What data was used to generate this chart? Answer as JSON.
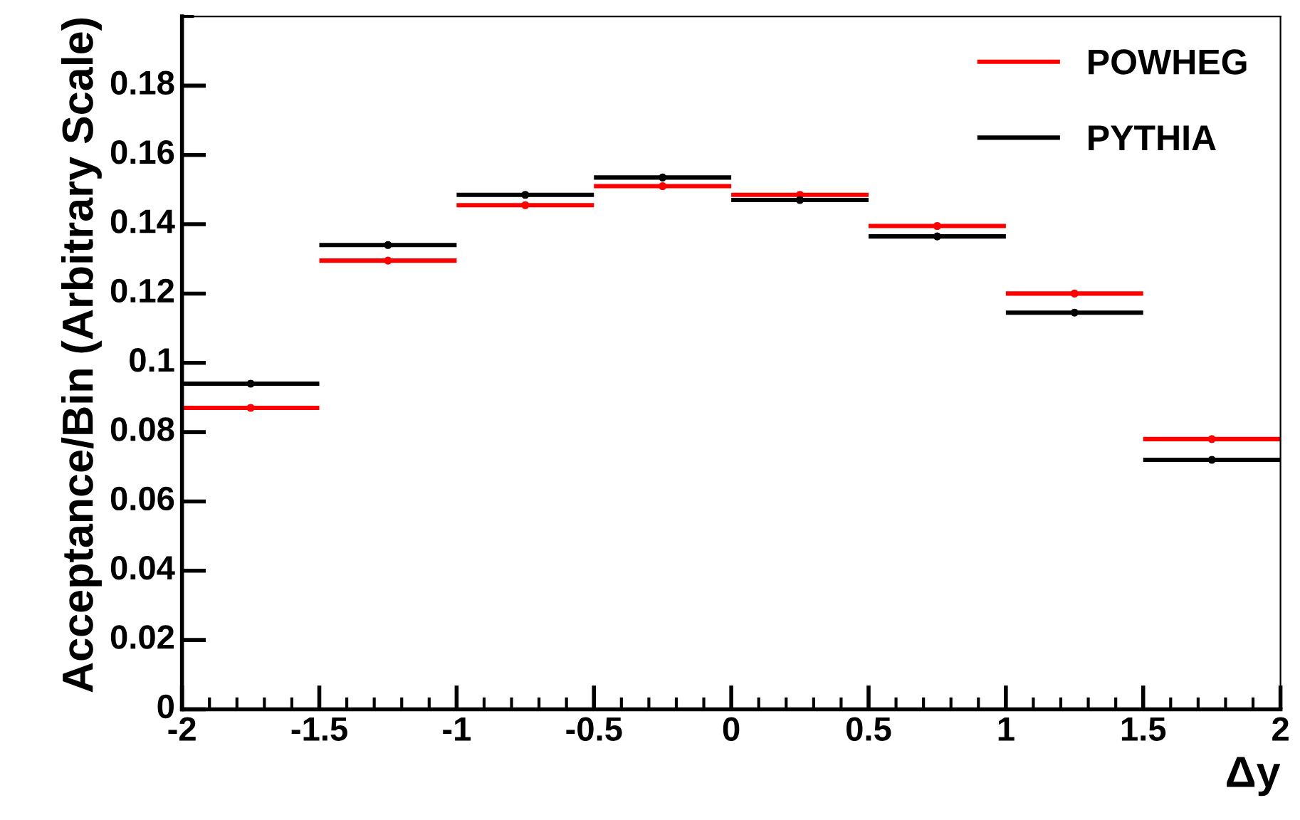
{
  "chart_data": {
    "type": "scatter",
    "xlabel": "Δy",
    "ylabel": "Acceptance/Bin (Arbitrary Scale)",
    "x": [
      -1.75,
      -1.25,
      -0.75,
      -0.25,
      0.25,
      0.75,
      1.25,
      1.75
    ],
    "series": [
      {
        "name": "POWHEG",
        "color": "#ff0000",
        "values": [
          0.087,
          0.1295,
          0.1455,
          0.151,
          0.1485,
          0.1395,
          0.12,
          0.078
        ],
        "xerrors": [
          0.25,
          0.25,
          0.25,
          0.25,
          0.25,
          0.25,
          0.25,
          0.25
        ],
        "errors": [
          0.001,
          0.001,
          0.001,
          0.001,
          0.001,
          0.001,
          0.001,
          0.001
        ]
      },
      {
        "name": "PYTHIA",
        "color": "#000000",
        "values": [
          0.094,
          0.134,
          0.1485,
          0.1535,
          0.147,
          0.1365,
          0.1145,
          0.072
        ],
        "xerrors": [
          0.25,
          0.25,
          0.25,
          0.25,
          0.25,
          0.25,
          0.25,
          0.25
        ],
        "errors": [
          0.001,
          0.001,
          0.001,
          0.001,
          0.001,
          0.001,
          0.001,
          0.001
        ]
      }
    ],
    "xlim": [
      -2,
      2
    ],
    "xticks": [
      -2,
      -1.5,
      -1,
      -0.5,
      0,
      0.5,
      1,
      1.5,
      2
    ],
    "ylim": [
      0,
      0.2
    ],
    "yticks": [
      0,
      0.02,
      0.04,
      0.06,
      0.08,
      0.1,
      0.12,
      0.14,
      0.16,
      0.18
    ],
    "marker": "circle",
    "legend": "top right"
  }
}
